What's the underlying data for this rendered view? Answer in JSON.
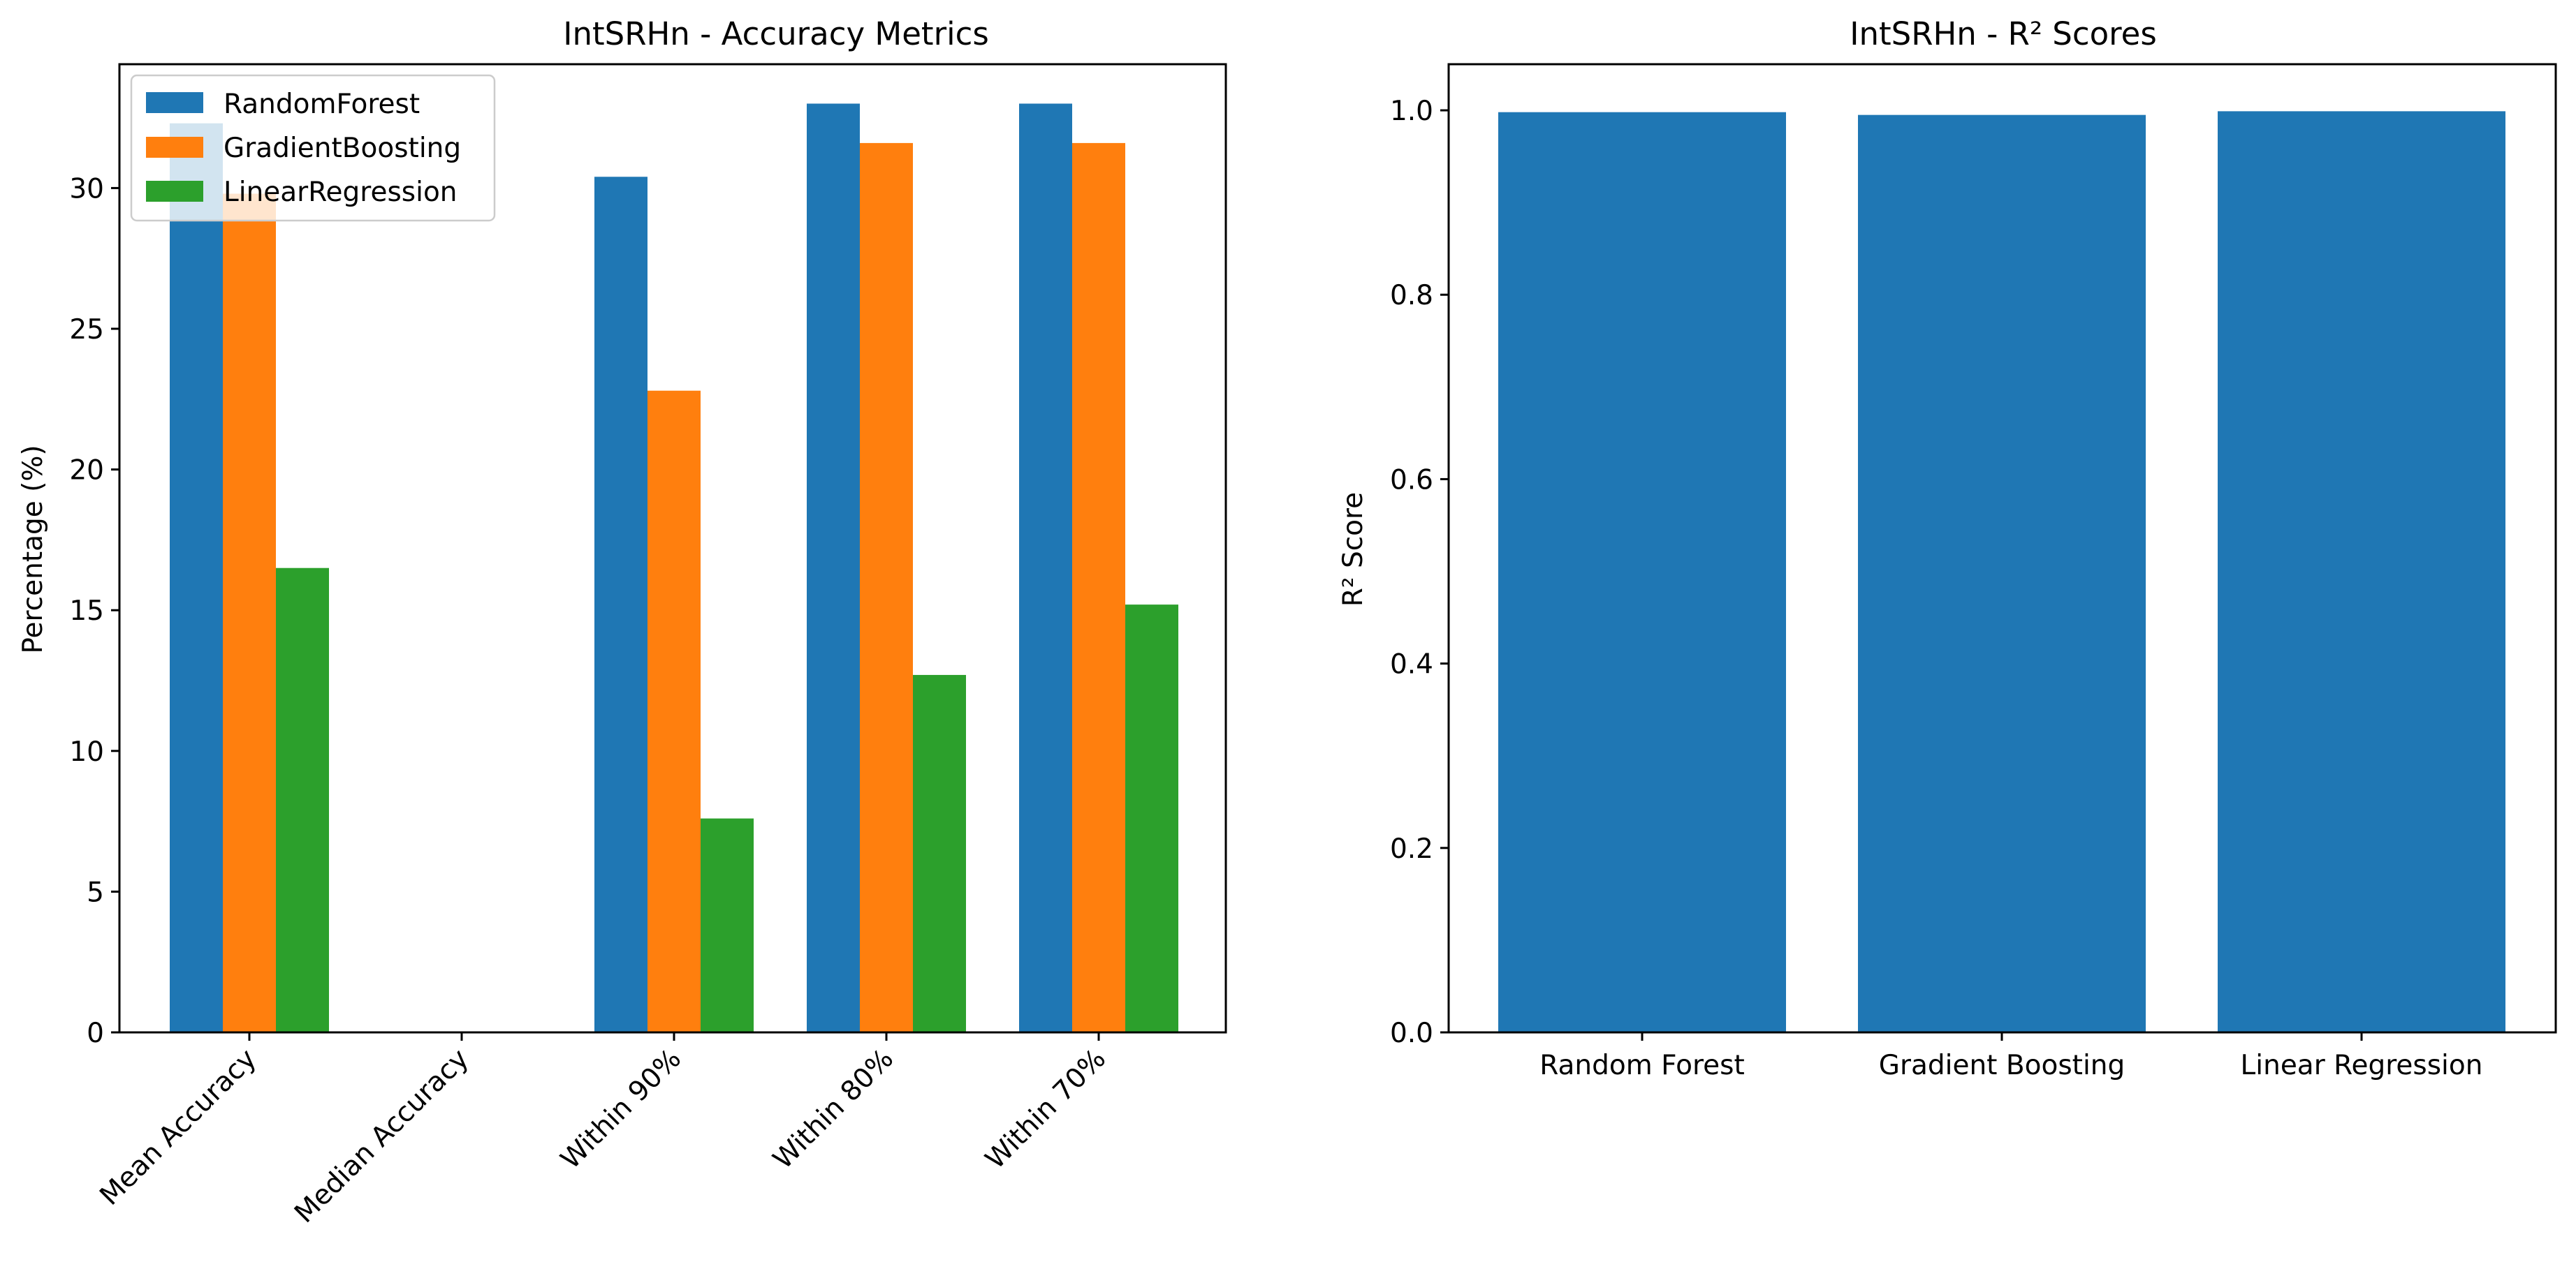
{
  "chart_data": [
    {
      "type": "bar",
      "title": "IntSRHn - Accuracy Metrics",
      "xlabel": "",
      "ylabel": "Percentage (%)",
      "categories": [
        "Mean Accuracy",
        "Median Accuracy",
        "Within 90%",
        "Within 80%",
        "Within 70%"
      ],
      "series": [
        {
          "name": "RandomForest",
          "color": "#1f77b4",
          "values": [
            32.3,
            0,
            30.4,
            33.0,
            33.0
          ]
        },
        {
          "name": "GradientBoosting",
          "color": "#ff7f0e",
          "values": [
            29.8,
            0,
            22.8,
            31.6,
            31.6
          ]
        },
        {
          "name": "LinearRegression",
          "color": "#2ca02c",
          "values": [
            16.5,
            0,
            7.6,
            12.7,
            15.2
          ]
        }
      ],
      "ylim": [
        0,
        34.4
      ],
      "yticks": [
        0,
        5,
        10,
        15,
        20,
        25,
        30
      ],
      "xtick_rotation": 45,
      "legend": "top-left",
      "grid": false
    },
    {
      "type": "bar",
      "title": "IntSRHn - R² Scores",
      "xlabel": "",
      "ylabel": "R² Score",
      "categories": [
        "Random Forest",
        "Gradient Boosting",
        "Linear Regression"
      ],
      "values": [
        0.998,
        0.995,
        0.999
      ],
      "color": "#1f77b4",
      "ylim": [
        0,
        1.05
      ],
      "yticks": [
        "0.0",
        "0.2",
        "0.4",
        "0.6",
        "0.8",
        "1.0"
      ],
      "grid": false
    }
  ]
}
